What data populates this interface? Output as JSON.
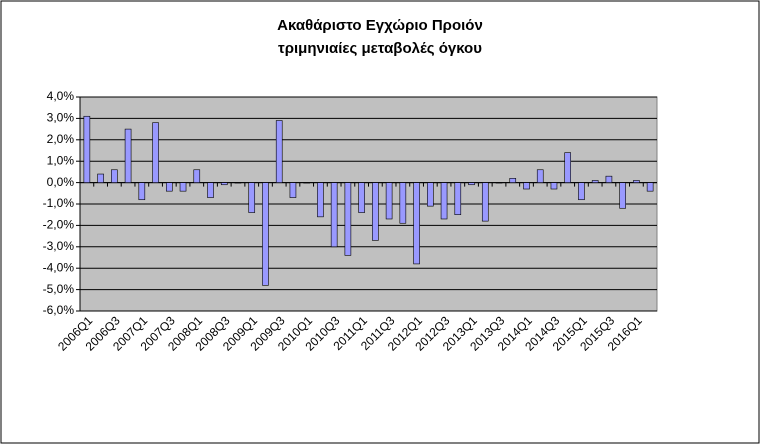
{
  "chart_data": {
    "type": "bar",
    "title": "Ακαθάριστο Εγχώριο Προιόν",
    "subtitle": "τριμηνιαίες μεταβολές όγκου",
    "categories": [
      "2006Q1",
      null,
      "2006Q3",
      null,
      "2007Q1",
      null,
      "2007Q3",
      null,
      "2008Q1",
      null,
      "2008Q3",
      null,
      "2009Q1",
      null,
      "2009Q3",
      null,
      "2010Q1",
      null,
      "2010Q3",
      null,
      "2011Q1",
      null,
      "2011Q3",
      null,
      "2012Q1",
      null,
      "2012Q3",
      null,
      "2013Q1",
      null,
      "2013Q3",
      null,
      "2014Q1",
      null,
      "2014Q3",
      null,
      "2015Q1",
      null,
      "2015Q3",
      null,
      "2016Q1",
      null
    ],
    "values": [
      3.1,
      0.4,
      0.6,
      2.5,
      -0.8,
      2.8,
      -0.4,
      -0.4,
      0.6,
      -0.7,
      -0.1,
      0.0,
      -1.4,
      -4.8,
      2.9,
      -0.7,
      0.0,
      -1.6,
      -3.0,
      -3.4,
      -1.4,
      -2.7,
      -1.7,
      -1.9,
      -3.8,
      -1.1,
      -1.7,
      -1.5,
      -0.1,
      -1.8,
      0.0,
      0.2,
      -0.3,
      0.6,
      -0.3,
      1.4,
      -0.8,
      0.1,
      0.3,
      -1.2,
      0.1,
      -0.4
    ],
    "color": "#9999ff",
    "ylim": [
      -6,
      4
    ],
    "yticks": [
      {
        "value": -6,
        "label": "-6,0%"
      },
      {
        "value": -5,
        "label": "-5,0%"
      },
      {
        "value": -4,
        "label": "-4,0%"
      },
      {
        "value": -3,
        "label": "-3,0%"
      },
      {
        "value": -2,
        "label": "-2,0%"
      },
      {
        "value": -1,
        "label": "-1,0%"
      },
      {
        "value": 0,
        "label": "0,0%"
      },
      {
        "value": 1,
        "label": "1,0%"
      },
      {
        "value": 2,
        "label": "2,0%"
      },
      {
        "value": 3,
        "label": "3,0%"
      },
      {
        "value": 4,
        "label": "4,0%"
      }
    ],
    "grid": true
  }
}
